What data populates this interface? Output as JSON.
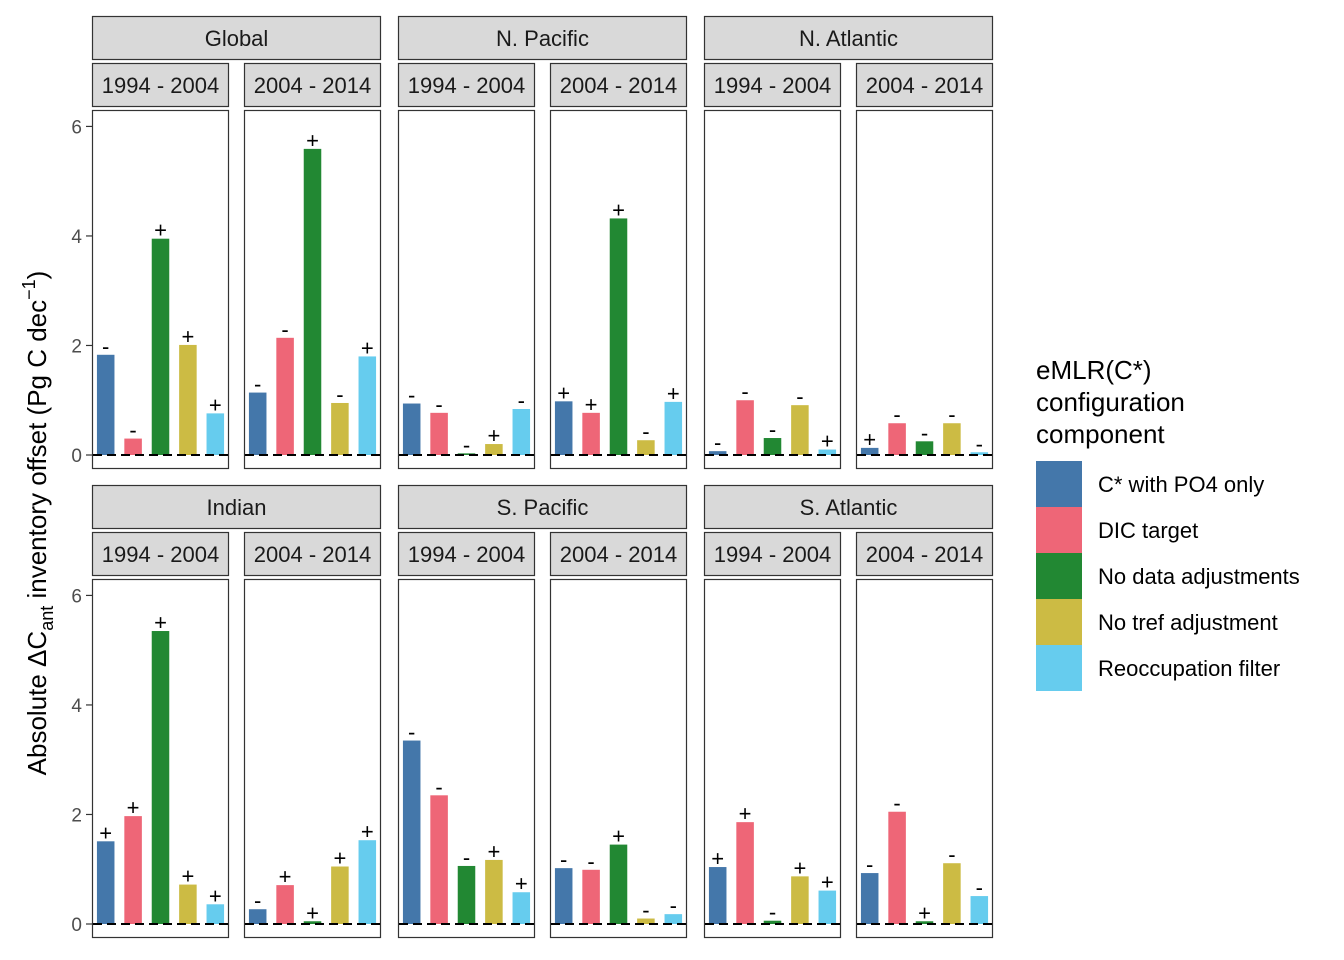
{
  "chart_data": {
    "type": "bar",
    "ylabel_parts": {
      "prefix": "Absolute ΔC",
      "sub": "ant",
      "middle": " inventory offset (Pg C dec",
      "sup": "−1",
      "suffix": ")"
    },
    "ylim": [
      0,
      6.3
    ],
    "yticks": [
      0,
      2,
      4,
      6
    ],
    "grid": false,
    "legend_placement": "right",
    "legend": {
      "title_lines": [
        "eMLR(C*)",
        "configuration",
        "component"
      ],
      "entries": [
        {
          "name": "C* with PO4 only",
          "color": "#4477AA"
        },
        {
          "name": "DIC target",
          "color": "#EE6677"
        },
        {
          "name": "No data adjustments",
          "color": "#228833"
        },
        {
          "name": "No tref adjustment",
          "color": "#CCBB44"
        },
        {
          "name": "Reoccupation filter",
          "color": "#66CCEE"
        }
      ]
    },
    "periods": [
      "1994 - 2004",
      "2004 - 2014"
    ],
    "regions": [
      {
        "name": "Global",
        "panels": [
          {
            "values": [
              1.83,
              0.3,
              3.95,
              2.01,
              0.76
            ],
            "signs": [
              "-",
              "-",
              "+",
              "+",
              "+"
            ]
          },
          {
            "values": [
              1.14,
              2.14,
              5.59,
              0.95,
              1.8
            ],
            "signs": [
              "-",
              "-",
              "+",
              "-",
              "+"
            ]
          }
        ]
      },
      {
        "name": "N. Pacific",
        "panels": [
          {
            "values": [
              0.94,
              0.77,
              0.03,
              0.2,
              0.84
            ],
            "signs": [
              "-",
              "-",
              "-",
              "+",
              "-"
            ]
          },
          {
            "values": [
              0.98,
              0.77,
              4.32,
              0.27,
              0.97
            ],
            "signs": [
              "+",
              "+",
              "+",
              "-",
              "+"
            ]
          }
        ]
      },
      {
        "name": "N. Atlantic",
        "panels": [
          {
            "values": [
              0.07,
              1.0,
              0.31,
              0.91,
              0.1
            ],
            "signs": [
              "-",
              "-",
              "-",
              "-",
              "+"
            ]
          },
          {
            "values": [
              0.13,
              0.58,
              0.25,
              0.58,
              0.05
            ],
            "signs": [
              "+",
              "-",
              "-",
              "-",
              "-"
            ]
          }
        ]
      },
      {
        "name": "Indian",
        "panels": [
          {
            "values": [
              1.51,
              1.97,
              5.35,
              0.72,
              0.36
            ],
            "signs": [
              "+",
              "+",
              "+",
              "+",
              "+"
            ]
          },
          {
            "values": [
              0.27,
              0.71,
              0.05,
              1.05,
              1.53
            ],
            "signs": [
              "-",
              "+",
              "+",
              "+",
              "+"
            ]
          }
        ]
      },
      {
        "name": "S. Pacific",
        "panels": [
          {
            "values": [
              3.35,
              2.35,
              1.06,
              1.17,
              0.58
            ],
            "signs": [
              "-",
              "-",
              "-",
              "+",
              "+"
            ]
          },
          {
            "values": [
              1.02,
              0.99,
              1.45,
              0.1,
              0.18
            ],
            "signs": [
              "-",
              "-",
              "+",
              "-",
              "-"
            ]
          }
        ]
      },
      {
        "name": "S. Atlantic",
        "panels": [
          {
            "values": [
              1.04,
              1.86,
              0.06,
              0.87,
              0.61
            ],
            "signs": [
              "+",
              "+",
              "-",
              "+",
              "+"
            ]
          },
          {
            "values": [
              0.93,
              2.05,
              0.05,
              1.11,
              0.51
            ],
            "signs": [
              "-",
              "-",
              "+",
              "-",
              "-"
            ]
          }
        ]
      }
    ]
  }
}
